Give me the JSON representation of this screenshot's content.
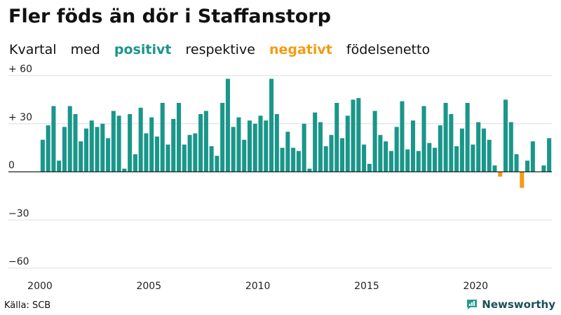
{
  "header": {
    "title": "Fler föds än dör i Staffanstorp",
    "subtitle_parts": [
      "Kvartal",
      "med",
      "positivt",
      "respektive",
      "negativt",
      "födelsenetto"
    ]
  },
  "footer": {
    "source": "Källa: SCB",
    "brand": "Newsworthy"
  },
  "colors": {
    "positive": "#1a968a",
    "negative": "#f39c12",
    "grid": "#dddddd",
    "zero_line": "#222222"
  },
  "chart_data": {
    "type": "bar",
    "title": "Fler föds än dör i Staffanstorp",
    "ylim": [
      -60,
      60
    ],
    "yticks": [
      60,
      30,
      0,
      -30,
      -60
    ],
    "ytick_labels": [
      "+ 60",
      "+ 30",
      "0",
      "−30",
      "−60"
    ],
    "xlim": [
      2000,
      2023.5
    ],
    "xticks": [
      2000,
      2005,
      2010,
      2015,
      2020
    ],
    "xtick_labels": [
      "2000",
      "2005",
      "2010",
      "2015",
      "2020"
    ],
    "start_year": 2000,
    "grid": true,
    "series": [
      {
        "name": "födelsenetto",
        "values": [
          20,
          29,
          41,
          7,
          28,
          41,
          36,
          19,
          27,
          32,
          28,
          30,
          21,
          38,
          35,
          2,
          36,
          11,
          40,
          24,
          34,
          22,
          43,
          17,
          33,
          43,
          17,
          23,
          24,
          36,
          38,
          16,
          10,
          43,
          58,
          28,
          34,
          20,
          32,
          30,
          35,
          32,
          58,
          36,
          15,
          25,
          15,
          13,
          30,
          2,
          37,
          31,
          16,
          23,
          43,
          21,
          35,
          45,
          46,
          17,
          5,
          38,
          23,
          19,
          13,
          28,
          44,
          14,
          32,
          13,
          41,
          18,
          15,
          29,
          43,
          36,
          16,
          27,
          43,
          17,
          31,
          27,
          20,
          4,
          -3,
          45,
          31,
          11,
          -10,
          7,
          19,
          0,
          4,
          21
        ]
      }
    ]
  }
}
